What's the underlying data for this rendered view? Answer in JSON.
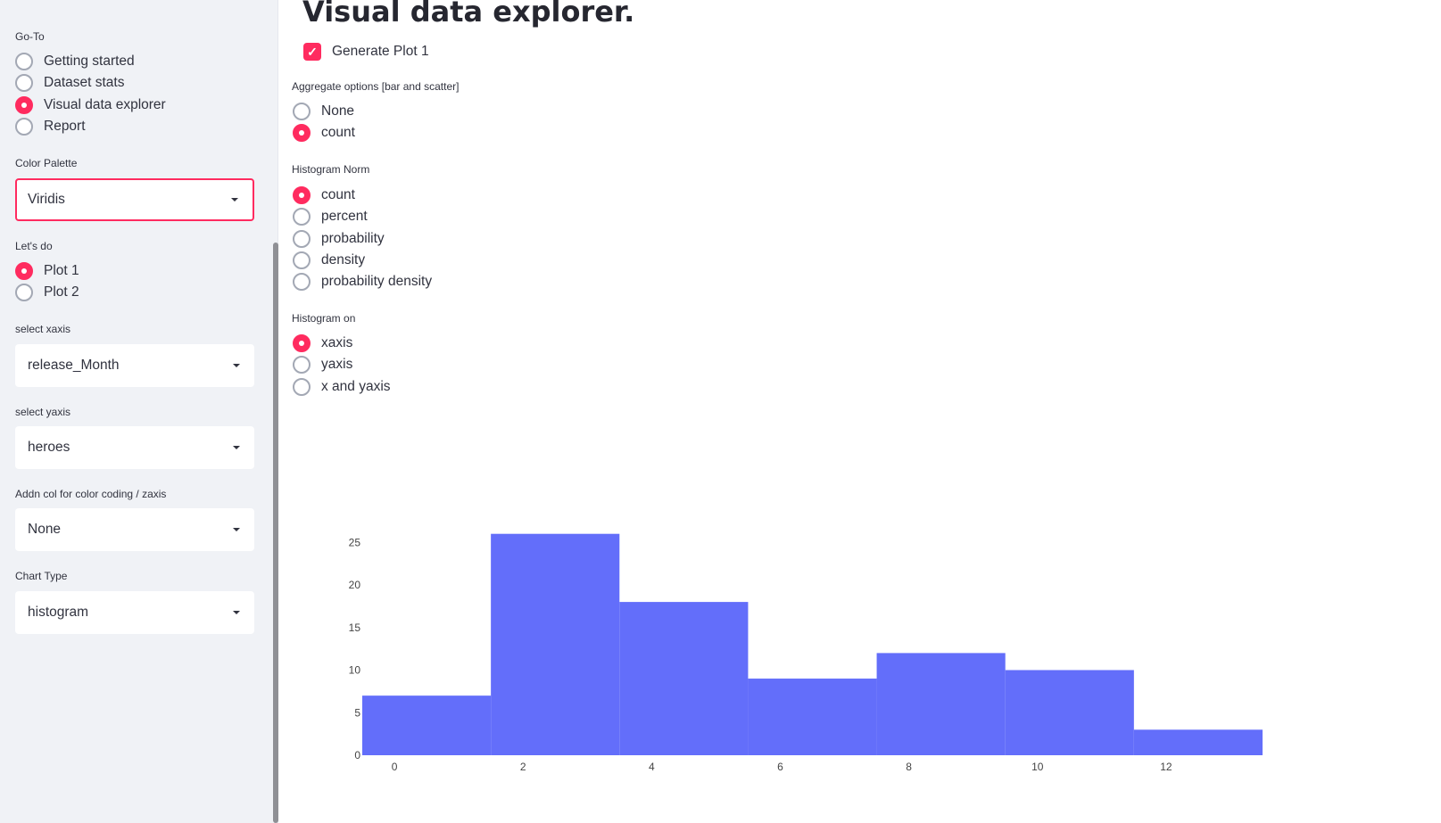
{
  "sidebar": {
    "goto": {
      "label": "Go-To",
      "options": [
        "Getting started",
        "Dataset stats",
        "Visual data explorer",
        "Report"
      ],
      "selected": 2
    },
    "color_palette": {
      "label": "Color Palette",
      "value": "Viridis"
    },
    "lets_do": {
      "label": "Let's do",
      "options": [
        "Plot 1",
        "Plot 2"
      ],
      "selected": 0
    },
    "xaxis": {
      "label": "select xaxis",
      "value": "release_Month"
    },
    "yaxis": {
      "label": "select yaxis",
      "value": "heroes"
    },
    "zaxis": {
      "label": "Addn col for color coding / zaxis",
      "value": "None"
    },
    "chart_type": {
      "label": "Chart Type",
      "value": "histogram"
    }
  },
  "main": {
    "title": "Visual data explorer.",
    "generate_plot": {
      "label": "Generate Plot 1",
      "checked": true
    },
    "aggregate": {
      "label": "Aggregate options [bar and scatter]",
      "options": [
        "None",
        "count"
      ],
      "selected": 1
    },
    "histnorm": {
      "label": "Histogram Norm",
      "options": [
        "count",
        "percent",
        "probability",
        "density",
        "probability density"
      ],
      "selected": 0
    },
    "histon": {
      "label": "Histogram on",
      "options": [
        "xaxis",
        "yaxis",
        "x and yaxis"
      ],
      "selected": 0
    }
  },
  "colors": {
    "accent": "#ff2b5f",
    "bar": "#636efa"
  },
  "chart_data": {
    "type": "bar",
    "bins": [
      {
        "x0": -0.5,
        "x1": 1.5,
        "value": 7
      },
      {
        "x0": 1.5,
        "x1": 3.5,
        "value": 26
      },
      {
        "x0": 3.5,
        "x1": 5.5,
        "value": 18
      },
      {
        "x0": 5.5,
        "x1": 7.5,
        "value": 9
      },
      {
        "x0": 7.5,
        "x1": 9.5,
        "value": 12
      },
      {
        "x0": 9.5,
        "x1": 11.5,
        "value": 10
      },
      {
        "x0": 11.5,
        "x1": 13.5,
        "value": 3
      }
    ],
    "x_ticks": [
      "0",
      "2",
      "4",
      "6",
      "8",
      "10",
      "12"
    ],
    "y_ticks": [
      "0",
      "5",
      "10",
      "15",
      "20",
      "25"
    ],
    "xlim": [
      -0.5,
      13.5
    ],
    "ylim": [
      0,
      27
    ],
    "grid": false,
    "title": "",
    "xlabel": "",
    "ylabel": ""
  }
}
